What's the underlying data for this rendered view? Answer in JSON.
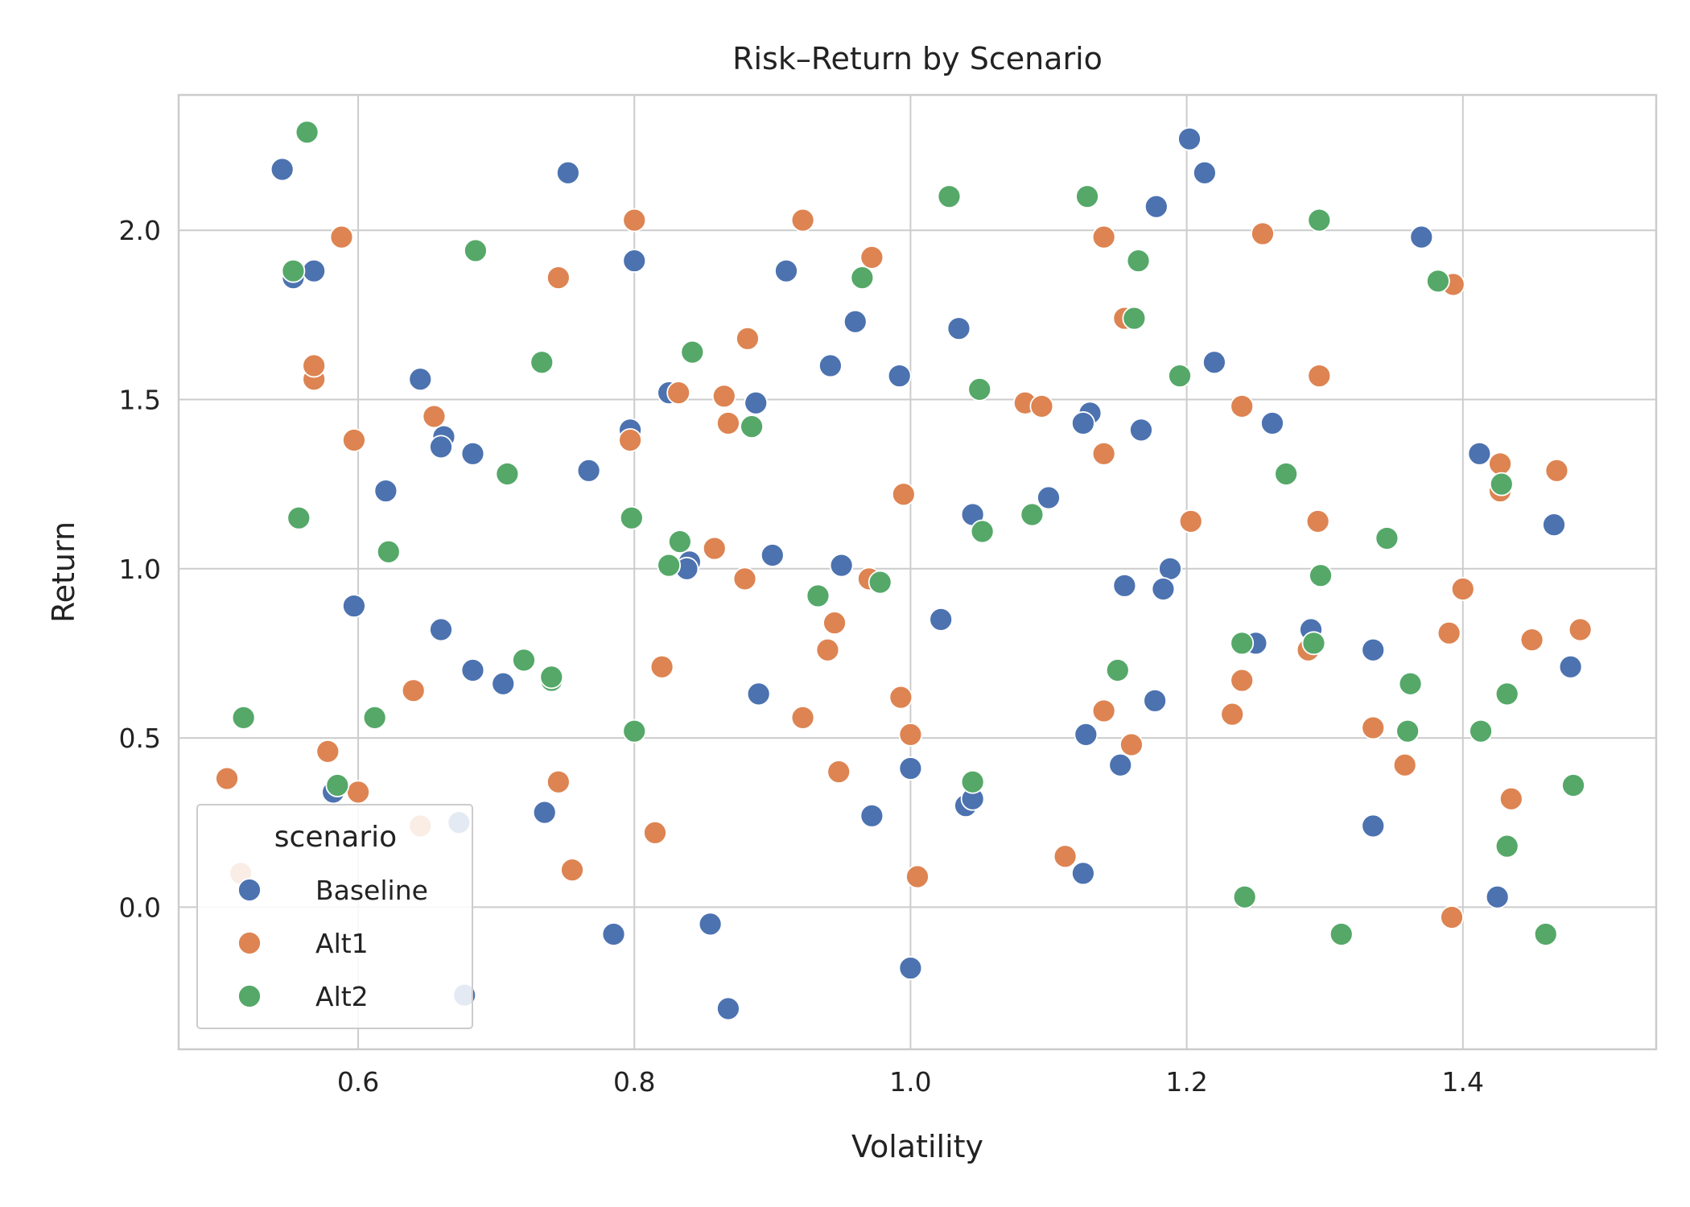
{
  "chart_data": {
    "type": "scatter",
    "title": "Risk–Return by Scenario",
    "xlabel": "Volatility",
    "ylabel": "Return",
    "xlim": [
      0.47,
      1.54
    ],
    "ylim": [
      -0.42,
      2.4
    ],
    "xticks": [
      0.6,
      0.8,
      1.0,
      1.2,
      1.4
    ],
    "xtick_labels": [
      "0.6",
      "0.8",
      "1.0",
      "1.2",
      "1.4"
    ],
    "yticks": [
      0.0,
      0.5,
      1.0,
      1.5,
      2.0
    ],
    "ytick_labels": [
      "0.0",
      "0.5",
      "1.0",
      "1.5",
      "2.0"
    ],
    "grid": true,
    "legend": {
      "title": "scenario",
      "position": "lower-left"
    },
    "series": [
      {
        "name": "Baseline",
        "color": "#4c72b0",
        "points": [
          [
            0.545,
            2.18
          ],
          [
            0.553,
            1.86
          ],
          [
            0.568,
            1.88
          ],
          [
            0.752,
            2.17
          ],
          [
            1.202,
            2.27
          ],
          [
            1.213,
            2.17
          ],
          [
            1.178,
            2.07
          ],
          [
            1.37,
            1.98
          ],
          [
            0.8,
            1.91
          ],
          [
            0.91,
            1.88
          ],
          [
            0.96,
            1.73
          ],
          [
            1.035,
            1.71
          ],
          [
            1.22,
            1.61
          ],
          [
            0.942,
            1.6
          ],
          [
            0.992,
            1.57
          ],
          [
            0.645,
            1.56
          ],
          [
            0.825,
            1.52
          ],
          [
            0.888,
            1.49
          ],
          [
            1.13,
            1.46
          ],
          [
            1.125,
            1.43
          ],
          [
            1.262,
            1.43
          ],
          [
            1.167,
            1.41
          ],
          [
            0.797,
            1.41
          ],
          [
            0.662,
            1.39
          ],
          [
            0.66,
            1.36
          ],
          [
            0.683,
            1.34
          ],
          [
            1.412,
            1.34
          ],
          [
            0.767,
            1.29
          ],
          [
            0.62,
            1.23
          ],
          [
            1.1,
            1.21
          ],
          [
            1.045,
            1.16
          ],
          [
            1.466,
            1.13
          ],
          [
            0.9,
            1.04
          ],
          [
            0.84,
            1.02
          ],
          [
            0.838,
            1.0
          ],
          [
            0.95,
            1.01
          ],
          [
            1.188,
            1.0
          ],
          [
            1.155,
            0.95
          ],
          [
            1.183,
            0.94
          ],
          [
            0.597,
            0.89
          ],
          [
            1.022,
            0.85
          ],
          [
            0.66,
            0.82
          ],
          [
            1.29,
            0.82
          ],
          [
            1.25,
            0.78
          ],
          [
            1.335,
            0.76
          ],
          [
            0.683,
            0.7
          ],
          [
            1.478,
            0.71
          ],
          [
            0.705,
            0.66
          ],
          [
            0.89,
            0.63
          ],
          [
            1.177,
            0.61
          ],
          [
            1.127,
            0.51
          ],
          [
            1.152,
            0.42
          ],
          [
            1.0,
            0.41
          ],
          [
            0.582,
            0.34
          ],
          [
            1.04,
            0.3
          ],
          [
            1.045,
            0.32
          ],
          [
            0.735,
            0.28
          ],
          [
            0.972,
            0.27
          ],
          [
            0.673,
            0.25
          ],
          [
            1.335,
            0.24
          ],
          [
            1.125,
            0.1
          ],
          [
            1.425,
            0.03
          ],
          [
            0.855,
            -0.05
          ],
          [
            0.785,
            -0.08
          ],
          [
            0.677,
            -0.26
          ],
          [
            1.0,
            -0.18
          ],
          [
            0.868,
            -0.3
          ]
        ]
      },
      {
        "name": "Alt1",
        "color": "#dd8452",
        "points": [
          [
            0.588,
            1.98
          ],
          [
            0.8,
            2.03
          ],
          [
            0.922,
            2.03
          ],
          [
            1.14,
            1.98
          ],
          [
            1.255,
            1.99
          ],
          [
            0.745,
            1.86
          ],
          [
            0.972,
            1.92
          ],
          [
            1.393,
            1.84
          ],
          [
            0.882,
            1.68
          ],
          [
            1.155,
            1.74
          ],
          [
            0.568,
            1.56
          ],
          [
            0.568,
            1.6
          ],
          [
            1.296,
            1.57
          ],
          [
            0.832,
            1.52
          ],
          [
            0.865,
            1.51
          ],
          [
            1.083,
            1.49
          ],
          [
            1.095,
            1.48
          ],
          [
            1.24,
            1.48
          ],
          [
            0.655,
            1.45
          ],
          [
            0.868,
            1.43
          ],
          [
            0.597,
            1.38
          ],
          [
            0.797,
            1.38
          ],
          [
            1.14,
            1.34
          ],
          [
            1.427,
            1.31
          ],
          [
            1.468,
            1.29
          ],
          [
            1.427,
            1.23
          ],
          [
            0.995,
            1.22
          ],
          [
            1.203,
            1.14
          ],
          [
            1.295,
            1.14
          ],
          [
            0.858,
            1.06
          ],
          [
            0.88,
            0.97
          ],
          [
            0.97,
            0.97
          ],
          [
            1.4,
            0.94
          ],
          [
            0.945,
            0.84
          ],
          [
            1.39,
            0.81
          ],
          [
            1.485,
            0.82
          ],
          [
            1.45,
            0.79
          ],
          [
            0.94,
            0.76
          ],
          [
            1.288,
            0.76
          ],
          [
            0.82,
            0.71
          ],
          [
            1.24,
            0.67
          ],
          [
            0.64,
            0.64
          ],
          [
            0.993,
            0.62
          ],
          [
            1.14,
            0.58
          ],
          [
            0.922,
            0.56
          ],
          [
            1.233,
            0.57
          ],
          [
            1.335,
            0.53
          ],
          [
            1.0,
            0.51
          ],
          [
            1.16,
            0.48
          ],
          [
            0.578,
            0.46
          ],
          [
            1.358,
            0.42
          ],
          [
            0.948,
            0.4
          ],
          [
            0.505,
            0.38
          ],
          [
            0.745,
            0.37
          ],
          [
            0.6,
            0.34
          ],
          [
            1.435,
            0.32
          ],
          [
            0.645,
            0.24
          ],
          [
            0.815,
            0.22
          ],
          [
            1.112,
            0.15
          ],
          [
            0.515,
            0.1
          ],
          [
            0.755,
            0.11
          ],
          [
            1.005,
            0.09
          ],
          [
            1.392,
            -0.03
          ]
        ]
      },
      {
        "name": "Alt2",
        "color": "#55a868",
        "points": [
          [
            0.563,
            2.29
          ],
          [
            1.028,
            2.1
          ],
          [
            1.128,
            2.1
          ],
          [
            1.296,
            2.03
          ],
          [
            0.685,
            1.94
          ],
          [
            0.553,
            1.88
          ],
          [
            0.965,
            1.86
          ],
          [
            1.165,
            1.91
          ],
          [
            1.382,
            1.85
          ],
          [
            1.162,
            1.74
          ],
          [
            0.842,
            1.64
          ],
          [
            0.733,
            1.61
          ],
          [
            1.195,
            1.57
          ],
          [
            1.05,
            1.53
          ],
          [
            0.885,
            1.42
          ],
          [
            0.708,
            1.28
          ],
          [
            1.272,
            1.28
          ],
          [
            1.428,
            1.25
          ],
          [
            0.557,
            1.15
          ],
          [
            0.798,
            1.15
          ],
          [
            1.088,
            1.16
          ],
          [
            1.052,
            1.11
          ],
          [
            1.345,
            1.09
          ],
          [
            0.833,
            1.08
          ],
          [
            0.622,
            1.05
          ],
          [
            0.825,
            1.01
          ],
          [
            1.297,
            0.98
          ],
          [
            0.978,
            0.96
          ],
          [
            0.933,
            0.92
          ],
          [
            0.72,
            0.73
          ],
          [
            0.74,
            0.67
          ],
          [
            0.74,
            0.68
          ],
          [
            1.15,
            0.7
          ],
          [
            1.362,
            0.66
          ],
          [
            1.432,
            0.63
          ],
          [
            1.24,
            0.78
          ],
          [
            1.292,
            0.78
          ],
          [
            0.517,
            0.56
          ],
          [
            0.612,
            0.56
          ],
          [
            0.8,
            0.52
          ],
          [
            1.36,
            0.52
          ],
          [
            1.413,
            0.52
          ],
          [
            1.48,
            0.36
          ],
          [
            0.585,
            0.36
          ],
          [
            1.045,
            0.37
          ],
          [
            1.432,
            0.18
          ],
          [
            1.242,
            0.03
          ],
          [
            1.312,
            -0.08
          ],
          [
            1.46,
            -0.08
          ]
        ]
      }
    ]
  }
}
